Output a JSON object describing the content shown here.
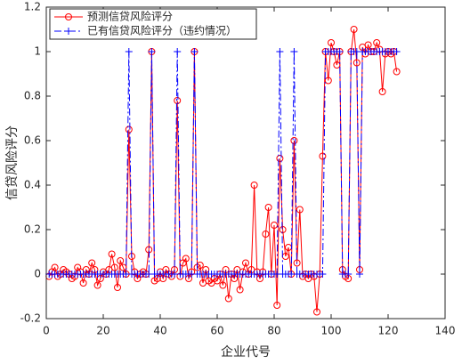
{
  "chart_data": {
    "type": "line",
    "xlabel": "企业代号",
    "ylabel": "信贷风险评分",
    "x": [
      1,
      2,
      3,
      4,
      5,
      6,
      7,
      8,
      9,
      10,
      11,
      12,
      13,
      14,
      15,
      16,
      17,
      18,
      19,
      20,
      21,
      22,
      23,
      24,
      25,
      26,
      27,
      28,
      29,
      30,
      31,
      32,
      33,
      34,
      35,
      36,
      37,
      38,
      39,
      40,
      41,
      42,
      43,
      44,
      45,
      46,
      47,
      48,
      49,
      50,
      51,
      52,
      53,
      54,
      55,
      56,
      57,
      58,
      59,
      60,
      61,
      62,
      63,
      64,
      65,
      66,
      67,
      68,
      69,
      70,
      71,
      72,
      73,
      74,
      75,
      76,
      77,
      78,
      79,
      80,
      81,
      82,
      83,
      84,
      85,
      86,
      87,
      88,
      89,
      90,
      91,
      92,
      93,
      94,
      95,
      96,
      97,
      98,
      99,
      100,
      101,
      102,
      103,
      104,
      105,
      106,
      107,
      108,
      109,
      110,
      111,
      112,
      113,
      114,
      115,
      116,
      117,
      118,
      119,
      120,
      121,
      122,
      123
    ],
    "series": [
      {
        "name": "预测信贷风险评分",
        "color": "#ff0000",
        "marker": "circle",
        "dash": "solid",
        "values": [
          -0.01,
          0.01,
          0.03,
          -0.01,
          0.0,
          0.02,
          0.01,
          0.0,
          -0.02,
          -0.01,
          0.03,
          0.01,
          -0.04,
          0.02,
          0.0,
          0.05,
          0.02,
          -0.05,
          -0.02,
          0.01,
          0.0,
          0.02,
          0.09,
          0.03,
          -0.06,
          0.06,
          0.03,
          0.0,
          0.65,
          0.08,
          0.01,
          -0.02,
          0.0,
          0.01,
          0.0,
          0.11,
          1.0,
          -0.03,
          -0.02,
          0.01,
          -0.02,
          0.02,
          0.0,
          -0.01,
          0.02,
          0.78,
          -0.01,
          0.05,
          0.07,
          -0.02,
          0.01,
          1.0,
          0.03,
          0.04,
          -0.04,
          0.02,
          -0.03,
          -0.04,
          -0.02,
          -0.03,
          0.0,
          -0.05,
          0.02,
          -0.11,
          0.0,
          -0.02,
          0.02,
          -0.07,
          0.01,
          0.05,
          0.0,
          0.02,
          0.4,
          0.01,
          -0.02,
          0.01,
          0.18,
          0.3,
          0.0,
          0.22,
          -0.14,
          0.52,
          0.2,
          0.08,
          0.12,
          0.0,
          0.6,
          0.05,
          0.29,
          -0.01,
          0.0,
          -0.02,
          0.0,
          -0.01,
          -0.17,
          0.0,
          0.53,
          1.0,
          0.87,
          1.04,
          1.0,
          0.94,
          1.0,
          0.02,
          -0.01,
          -0.02,
          1.0,
          1.1,
          0.95,
          0.02,
          1.02,
          0.99,
          1.03,
          1.0,
          1.0,
          1.04,
          1.01,
          0.82,
          0.99,
          1.0,
          0.99,
          1.0,
          0.91
        ]
      },
      {
        "name": "已有信贷风险评分（违约情况）",
        "color": "#0000ff",
        "marker": "plus",
        "dash": "dashdot",
        "values": [
          0,
          0,
          0,
          0,
          0,
          0,
          0,
          0,
          0,
          0,
          0,
          0,
          0,
          0,
          0,
          0,
          0,
          0,
          0,
          0,
          0,
          0,
          0,
          0,
          0,
          0,
          0,
          0,
          1,
          0,
          0,
          0,
          0,
          0,
          0,
          0,
          1,
          0,
          0,
          0,
          0,
          0,
          0,
          0,
          0,
          1,
          0,
          0,
          0,
          0,
          0,
          1,
          0,
          0,
          0,
          0,
          0,
          0,
          0,
          0,
          0,
          0,
          0,
          0,
          0,
          0,
          0,
          0,
          0,
          0,
          0,
          0,
          0,
          0,
          0,
          0,
          0,
          0,
          0,
          0,
          0,
          1,
          0,
          0,
          0,
          0,
          1,
          0,
          0,
          0,
          0,
          0,
          0,
          0,
          0,
          0,
          0,
          1,
          1,
          1,
          1,
          1,
          1,
          0,
          0,
          0,
          1,
          1,
          1,
          0,
          1,
          1,
          1,
          1,
          1,
          1,
          1,
          1,
          1,
          1,
          1,
          1,
          1
        ]
      }
    ],
    "xlim": [
      0,
      140
    ],
    "xticks": [
      0,
      20,
      40,
      60,
      80,
      100,
      120,
      140
    ],
    "ylim": [
      -0.2,
      1.2
    ],
    "yticks": [
      -0.2,
      0,
      0.2,
      0.4,
      0.6,
      0.8,
      1,
      1.2
    ],
    "grid": false,
    "legend": "top-left"
  }
}
